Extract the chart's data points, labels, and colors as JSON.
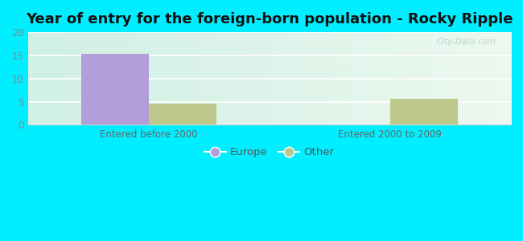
{
  "title": "Year of entry for the foreign-born population - Rocky Ripple",
  "groups": [
    "Entered before 2000",
    "Entered 2000 to 2009"
  ],
  "series": [
    {
      "label": "Europe",
      "color": "#b39ddb",
      "values": [
        15.3,
        0
      ]
    },
    {
      "label": "Other",
      "color": "#bdc98a",
      "values": [
        4.5,
        5.6
      ]
    }
  ],
  "ylim": [
    0,
    20
  ],
  "yticks": [
    0,
    5,
    10,
    15,
    20
  ],
  "title_fontsize": 13,
  "tick_fontsize": 8.5,
  "legend_fontsize": 9.5,
  "bar_width": 0.28,
  "outer_bg": "#00eeff",
  "plot_bg": "#d8f5e8",
  "watermark": "City-Data.com"
}
